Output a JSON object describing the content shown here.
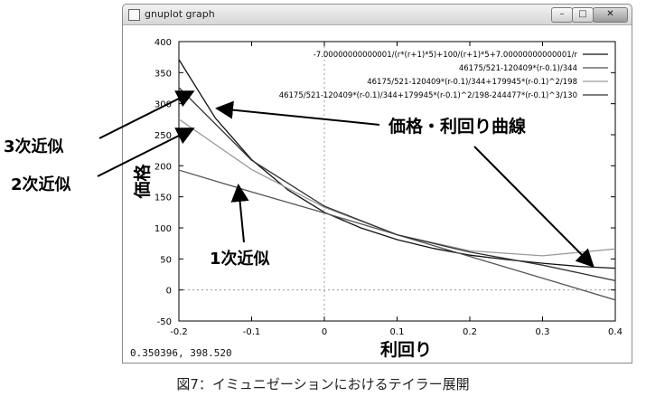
{
  "window": {
    "title": "gnuplot graph",
    "buttons": {
      "minimize": "–",
      "maximize": "□",
      "close": "✕"
    },
    "cursor_readout": "0.350396, 398.520"
  },
  "caption": "図7：イミュニゼーションにおけるテイラー展開",
  "annotations": {
    "third_order": "3次近似",
    "second_order": "2次近似",
    "first_order": "1次近似",
    "price_curve": "価格・利回り曲線"
  },
  "chart_data": {
    "type": "line",
    "title": "",
    "xlabel": "利回り",
    "ylabel": "価格",
    "xlim": [
      -0.2,
      0.4
    ],
    "ylim": [
      -50,
      400
    ],
    "xticks": [
      "-0.2",
      "-0.1",
      "0",
      "0.1",
      "0.2",
      "0.3",
      "0.4"
    ],
    "yticks": [
      "-50",
      "0",
      "50",
      "100",
      "150",
      "200",
      "250",
      "300",
      "350",
      "400"
    ],
    "legend_position": "top-right",
    "grid": false,
    "zero_axes_dashed": true,
    "series": [
      {
        "name": "-7.00000000000001/(r*(r+1)*5)+100/(r+1)*5+7.00000000000001/r",
        "color": "#111111",
        "x": [
          -0.2,
          -0.15,
          -0.1,
          -0.05,
          0,
          0.05,
          0.1,
          0.15,
          0.2,
          0.25,
          0.3,
          0.35,
          0.4
        ],
        "y": [
          371,
          277,
          210,
          161,
          125,
          100,
          81,
          67,
          56,
          49,
          43,
          38,
          35
        ]
      },
      {
        "name": "46175/521-120409*(r-0.1)/344",
        "color": "#555555",
        "x": [
          -0.2,
          -0.1,
          0,
          0.1,
          0.2,
          0.3,
          0.4
        ],
        "y": [
          193,
          158,
          124,
          89,
          54,
          19,
          -16
        ]
      },
      {
        "name": "46175/521-120409*(r-0.1)/344+179945*(r-0.1)^2/198",
        "color": "#9a9a9a",
        "x": [
          -0.2,
          -0.1,
          0,
          0.1,
          0.2,
          0.3,
          0.4
        ],
        "y": [
          275,
          194,
          133,
          89,
          63,
          55,
          66
        ]
      },
      {
        "name": "46175/521-120409*(r-0.1)/344+179945*(r-0.1)^2/198-244477*(r-0.1)^3/130",
        "color": "#333333",
        "x": [
          -0.2,
          -0.1,
          0,
          0.1,
          0.2,
          0.3,
          0.4
        ],
        "y": [
          326,
          209,
          135,
          89,
          61,
          40,
          15
        ]
      }
    ]
  }
}
